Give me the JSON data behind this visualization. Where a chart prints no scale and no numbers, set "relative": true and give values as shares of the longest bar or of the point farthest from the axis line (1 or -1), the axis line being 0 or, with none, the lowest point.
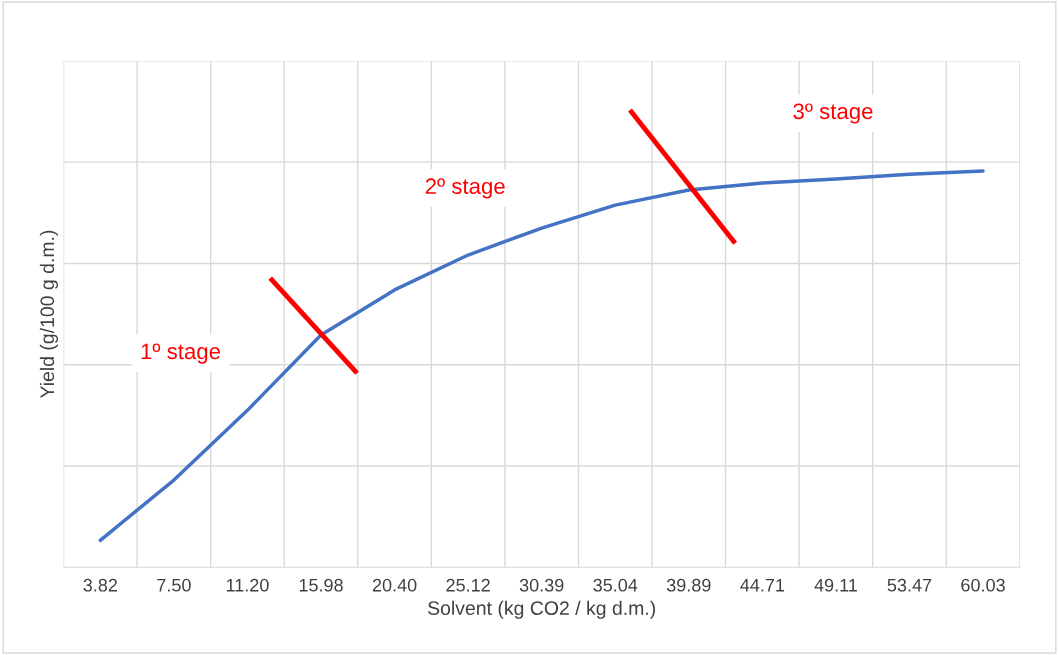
{
  "chart_data": {
    "type": "line",
    "relative": true,
    "xlabel": "Solvent (kg CO2 / kg d.m.)",
    "ylabel": "Yield (g/100 g d.m.)",
    "categories": [
      "3.82",
      "7.50",
      "11.20",
      "15.98",
      "20.40",
      "25.12",
      "30.39",
      "35.04",
      "39.89",
      "44.71",
      "49.11",
      "53.47",
      "60.03"
    ],
    "series": [
      {
        "color": "#4472c4",
        "values": [
          0.068,
          0.22,
          0.396,
          0.586,
          0.7,
          0.788,
          0.856,
          0.914,
          0.952,
          0.97,
          0.98,
          0.992,
          1.0
        ]
      }
    ],
    "annotations": [
      "1º stage",
      "2º stage",
      "3º stage"
    ],
    "grid": true,
    "legend": false,
    "marker": "none",
    "line_style": "solid"
  }
}
